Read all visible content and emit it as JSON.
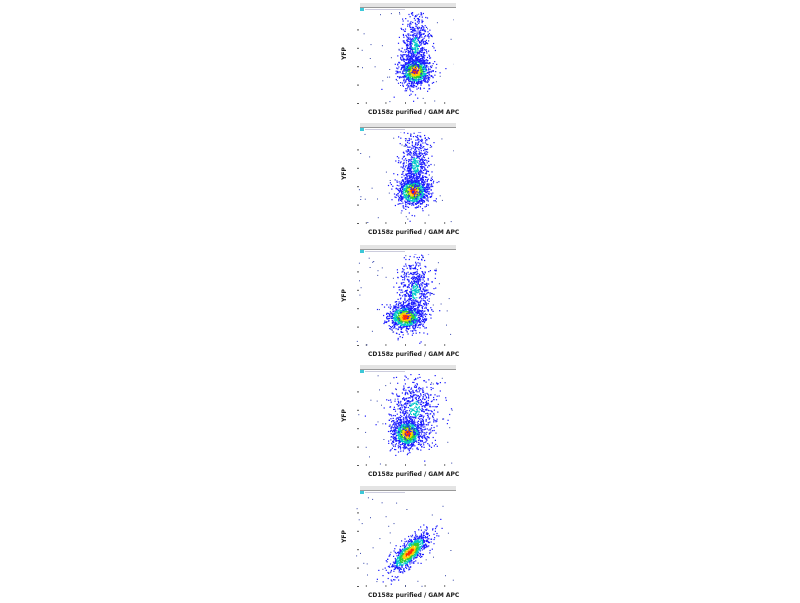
{
  "chart_data": [
    {
      "type": "scatter",
      "title": "",
      "xlabel": "CD158z purified / GAM APC",
      "ylabel": "YFP",
      "xscale": "log",
      "yscale": "log",
      "xlim": [
        0,
        5
      ],
      "ylim": [
        0,
        5
      ],
      "grid": false,
      "populations": [
        {
          "center": [
            3.0,
            1.8
          ],
          "spread": [
            0.4,
            0.4
          ],
          "density": "high"
        },
        {
          "center": [
            3.0,
            3.2
          ],
          "spread": [
            0.35,
            0.9
          ],
          "density": "medium"
        }
      ]
    },
    {
      "type": "scatter",
      "title": "",
      "xlabel": "CD158z purified / GAM APC",
      "ylabel": "YFP",
      "xscale": "log",
      "yscale": "log",
      "xlim": [
        0,
        5
      ],
      "ylim": [
        0,
        5
      ],
      "grid": false,
      "populations": [
        {
          "center": [
            2.9,
            1.8
          ],
          "spread": [
            0.4,
            0.4
          ],
          "density": "high"
        },
        {
          "center": [
            3.0,
            3.2
          ],
          "spread": [
            0.35,
            0.9
          ],
          "density": "medium"
        }
      ]
    },
    {
      "type": "scatter",
      "title": "",
      "xlabel": "CD158z purified / GAM APC",
      "ylabel": "YFP",
      "xscale": "log",
      "yscale": "log",
      "xlim": [
        0,
        5
      ],
      "ylim": [
        0,
        5
      ],
      "grid": false,
      "populations": [
        {
          "center": [
            2.5,
            1.6
          ],
          "spread": [
            0.45,
            0.35
          ],
          "density": "high"
        },
        {
          "center": [
            3.0,
            3.0
          ],
          "spread": [
            0.4,
            0.9
          ],
          "density": "medium"
        }
      ]
    },
    {
      "type": "scatter",
      "title": "",
      "xlabel": "CD158z purified / GAM APC",
      "ylabel": "YFP",
      "xscale": "log",
      "yscale": "log",
      "xlim": [
        0,
        5
      ],
      "ylim": [
        0,
        5
      ],
      "grid": false,
      "populations": [
        {
          "center": [
            2.6,
            1.8
          ],
          "spread": [
            0.4,
            0.4
          ],
          "density": "high"
        },
        {
          "center": [
            3.0,
            3.1
          ],
          "spread": [
            0.6,
            0.9
          ],
          "density": "medium"
        }
      ]
    },
    {
      "type": "scatter",
      "title": "",
      "xlabel": "CD158z purified / GAM APC",
      "ylabel": "YFP",
      "xscale": "log",
      "yscale": "log",
      "xlim": [
        0,
        5
      ],
      "ylim": [
        0,
        5
      ],
      "grid": false,
      "populations": [
        {
          "center": [
            2.7,
            1.9
          ],
          "spread": [
            0.5,
            0.35
          ],
          "density": "high",
          "correlated": true
        }
      ]
    }
  ],
  "colors": {
    "low": "#1a1aff",
    "mid": "#00c8c8",
    "midhigh": "#30d030",
    "high": "#ffd000",
    "peak": "#ff3000",
    "legend": "#3cc8d8"
  }
}
